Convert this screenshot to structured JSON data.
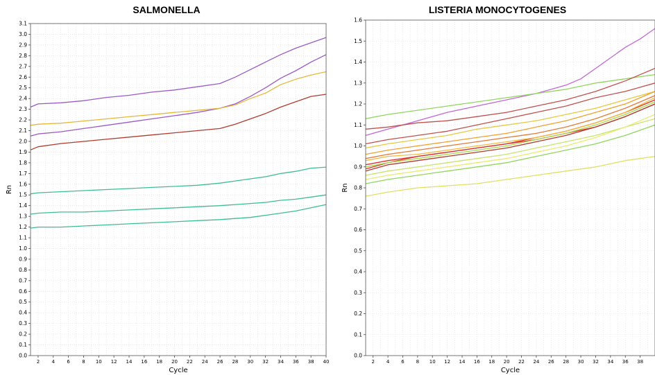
{
  "chart_data": [
    {
      "type": "line",
      "title": "SALMONELLA",
      "xlabel": "Cycle",
      "ylabel": "Rn",
      "xlim": [
        1,
        40
      ],
      "ylim": [
        0.0,
        3.1
      ],
      "grid": true,
      "yticks": [
        "0.0",
        "0.1",
        "0.2",
        "0.3",
        "0.4",
        "0.5",
        "0.6",
        "0.7",
        "0.8",
        "0.9",
        "1.0",
        "1.1",
        "1.2",
        "1.3",
        "1.4",
        "1.5",
        "1.6",
        "1.7",
        "1.8",
        "1.9",
        "2.0",
        "2.1",
        "2.2",
        "2.3",
        "2.4",
        "2.5",
        "2.6",
        "2.7",
        "2.8",
        "2.9",
        "3.0",
        "3.1"
      ],
      "xticks": [
        "2",
        "4",
        "6",
        "8",
        "10",
        "12",
        "14",
        "16",
        "18",
        "20",
        "22",
        "24",
        "26",
        "28",
        "30",
        "32",
        "34",
        "36",
        "38",
        "40"
      ],
      "series": [
        {
          "color": "#9b59c7",
          "x": [
            1,
            2,
            5,
            8,
            11,
            14,
            17,
            20,
            23,
            26,
            28,
            30,
            32,
            34,
            36,
            38,
            40
          ],
          "y": [
            2.32,
            2.35,
            2.36,
            2.38,
            2.41,
            2.43,
            2.46,
            2.48,
            2.51,
            2.54,
            2.6,
            2.67,
            2.74,
            2.81,
            2.87,
            2.92,
            2.97
          ]
        },
        {
          "color": "#9b59c7",
          "x": [
            1,
            2,
            5,
            8,
            11,
            14,
            17,
            20,
            23,
            26,
            28,
            30,
            32,
            34,
            36,
            38,
            40
          ],
          "y": [
            2.05,
            2.07,
            2.09,
            2.12,
            2.15,
            2.18,
            2.21,
            2.24,
            2.27,
            2.31,
            2.35,
            2.42,
            2.5,
            2.59,
            2.66,
            2.74,
            2.81
          ]
        },
        {
          "color": "#e4b93a",
          "x": [
            1,
            2,
            5,
            8,
            11,
            14,
            17,
            20,
            23,
            26,
            28,
            30,
            32,
            34,
            36,
            38,
            40
          ],
          "y": [
            2.15,
            2.16,
            2.17,
            2.19,
            2.21,
            2.23,
            2.25,
            2.27,
            2.29,
            2.31,
            2.34,
            2.4,
            2.45,
            2.53,
            2.58,
            2.62,
            2.65
          ]
        },
        {
          "color": "#b03a2e",
          "x": [
            1,
            2,
            5,
            8,
            11,
            14,
            17,
            20,
            23,
            26,
            28,
            30,
            32,
            34,
            36,
            38,
            40
          ],
          "y": [
            1.92,
            1.95,
            1.98,
            2.0,
            2.02,
            2.04,
            2.06,
            2.08,
            2.1,
            2.12,
            2.16,
            2.21,
            2.26,
            2.32,
            2.37,
            2.42,
            2.44
          ]
        },
        {
          "color": "#3cbf8f",
          "x": [
            1,
            2,
            5,
            8,
            11,
            14,
            17,
            20,
            23,
            26,
            28,
            30,
            32,
            34,
            36,
            38,
            40
          ],
          "y": [
            1.51,
            1.52,
            1.53,
            1.54,
            1.55,
            1.56,
            1.57,
            1.58,
            1.59,
            1.61,
            1.63,
            1.65,
            1.67,
            1.7,
            1.72,
            1.75,
            1.76
          ]
        },
        {
          "color": "#3cbf8f",
          "x": [
            1,
            2,
            5,
            8,
            11,
            14,
            17,
            20,
            23,
            26,
            28,
            30,
            32,
            34,
            36,
            38,
            40
          ],
          "y": [
            1.32,
            1.33,
            1.34,
            1.34,
            1.35,
            1.36,
            1.37,
            1.38,
            1.39,
            1.4,
            1.41,
            1.42,
            1.43,
            1.45,
            1.46,
            1.48,
            1.5
          ]
        },
        {
          "color": "#3cbf8f",
          "x": [
            1,
            2,
            5,
            8,
            11,
            14,
            17,
            20,
            23,
            26,
            28,
            30,
            32,
            34,
            36,
            38,
            40
          ],
          "y": [
            1.19,
            1.2,
            1.2,
            1.21,
            1.22,
            1.23,
            1.24,
            1.25,
            1.26,
            1.27,
            1.28,
            1.29,
            1.31,
            1.33,
            1.35,
            1.38,
            1.41
          ]
        }
      ]
    },
    {
      "type": "line",
      "title": "LISTERIA MONOCYTOGENES",
      "xlabel": "Cycle",
      "ylabel": "Rn",
      "xlim": [
        1,
        40
      ],
      "ylim": [
        0.0,
        1.6
      ],
      "grid": true,
      "yticks": [
        "0.0",
        "0.1",
        "0.2",
        "0.3",
        "0.4",
        "0.5",
        "0.6",
        "0.7",
        "0.8",
        "0.9",
        "1.0",
        "1.1",
        "1.2",
        "1.3",
        "1.4",
        "1.5",
        "1.6"
      ],
      "xticks": [
        "2",
        "4",
        "6",
        "8",
        "10",
        "12",
        "14",
        "16",
        "18",
        "20",
        "22",
        "24",
        "26",
        "28",
        "30",
        "32",
        "34",
        "36",
        "38"
      ],
      "series": [
        {
          "color": "#c266d6",
          "x": [
            1,
            4,
            8,
            12,
            16,
            20,
            24,
            28,
            30,
            32,
            34,
            36,
            38,
            40
          ],
          "y": [
            1.05,
            1.08,
            1.12,
            1.16,
            1.19,
            1.22,
            1.25,
            1.29,
            1.32,
            1.37,
            1.42,
            1.47,
            1.51,
            1.56
          ]
        },
        {
          "color": "#8fd65e",
          "x": [
            1,
            4,
            8,
            12,
            16,
            20,
            24,
            28,
            32,
            36,
            40
          ],
          "y": [
            1.13,
            1.15,
            1.17,
            1.19,
            1.21,
            1.23,
            1.25,
            1.27,
            1.3,
            1.32,
            1.34
          ]
        },
        {
          "color": "#c0504d",
          "x": [
            1,
            4,
            8,
            12,
            16,
            20,
            24,
            28,
            32,
            36,
            40
          ],
          "y": [
            1.08,
            1.09,
            1.11,
            1.12,
            1.14,
            1.16,
            1.19,
            1.22,
            1.26,
            1.31,
            1.37
          ]
        },
        {
          "color": "#c0504d",
          "x": [
            1,
            4,
            8,
            12,
            16,
            20,
            24,
            28,
            32,
            36,
            40
          ],
          "y": [
            1.01,
            1.03,
            1.05,
            1.07,
            1.1,
            1.13,
            1.16,
            1.19,
            1.23,
            1.26,
            1.3
          ]
        },
        {
          "color": "#e8c840",
          "x": [
            1,
            4,
            8,
            12,
            16,
            20,
            24,
            28,
            32,
            36,
            40
          ],
          "y": [
            0.99,
            1.01,
            1.03,
            1.05,
            1.08,
            1.1,
            1.12,
            1.15,
            1.18,
            1.22,
            1.26
          ]
        },
        {
          "color": "#f0a030",
          "x": [
            1,
            4,
            8,
            12,
            16,
            20,
            24,
            28,
            32,
            36,
            40
          ],
          "y": [
            0.96,
            0.98,
            1.0,
            1.02,
            1.04,
            1.06,
            1.09,
            1.12,
            1.16,
            1.2,
            1.26
          ]
        },
        {
          "color": "#e07b39",
          "x": [
            1,
            4,
            8,
            12,
            16,
            20,
            24,
            28,
            32,
            36,
            40
          ],
          "y": [
            0.94,
            0.96,
            0.98,
            1.0,
            1.02,
            1.04,
            1.06,
            1.09,
            1.13,
            1.18,
            1.24
          ]
        },
        {
          "color": "#d9342b",
          "x": [
            1,
            4,
            8,
            12,
            16,
            20,
            24,
            28,
            32,
            36,
            40
          ],
          "y": [
            0.89,
            0.92,
            0.95,
            0.97,
            0.99,
            1.01,
            1.04,
            1.07,
            1.11,
            1.16,
            1.22
          ]
        },
        {
          "color": "#d9342b",
          "x": [
            1,
            4,
            8,
            12,
            16,
            20,
            24,
            28,
            32,
            36,
            40
          ],
          "y": [
            0.91,
            0.93,
            0.95,
            0.97,
            0.99,
            1.01,
            1.03,
            1.06,
            1.09,
            1.14,
            1.2
          ]
        },
        {
          "color": "#f5b942",
          "x": [
            1,
            4,
            8,
            12,
            16,
            20,
            24,
            28,
            32,
            36,
            40
          ],
          "y": [
            0.93,
            0.95,
            0.96,
            0.98,
            1.0,
            1.02,
            1.04,
            1.07,
            1.11,
            1.16,
            1.23
          ]
        },
        {
          "color": "#b03a2e",
          "x": [
            1,
            4,
            8,
            12,
            16,
            20,
            24,
            28,
            32,
            36,
            40
          ],
          "y": [
            0.88,
            0.91,
            0.93,
            0.95,
            0.97,
            0.99,
            1.02,
            1.05,
            1.09,
            1.14,
            1.2
          ]
        },
        {
          "color": "#a8d84e",
          "x": [
            1,
            4,
            8,
            12,
            16,
            20,
            24,
            28,
            32,
            36,
            40
          ],
          "y": [
            0.9,
            0.92,
            0.94,
            0.96,
            0.98,
            1.0,
            1.03,
            1.06,
            1.1,
            1.15,
            1.21
          ]
        },
        {
          "color": "#c9e36a",
          "x": [
            1,
            4,
            8,
            12,
            16,
            20,
            24,
            28,
            32,
            36,
            40
          ],
          "y": [
            0.86,
            0.88,
            0.9,
            0.92,
            0.94,
            0.96,
            0.99,
            1.02,
            1.05,
            1.09,
            1.13
          ]
        },
        {
          "color": "#e8ec70",
          "x": [
            1,
            4,
            8,
            12,
            16,
            20,
            24,
            28,
            32,
            36,
            40
          ],
          "y": [
            0.84,
            0.86,
            0.88,
            0.9,
            0.92,
            0.94,
            0.97,
            1.0,
            1.04,
            1.09,
            1.15
          ]
        },
        {
          "color": "#8fd65e",
          "x": [
            1,
            4,
            8,
            12,
            16,
            20,
            24,
            28,
            32,
            36,
            40
          ],
          "y": [
            0.82,
            0.84,
            0.86,
            0.88,
            0.9,
            0.92,
            0.95,
            0.98,
            1.01,
            1.05,
            1.1
          ]
        },
        {
          "color": "#e0e060",
          "x": [
            1,
            4,
            8,
            12,
            16,
            20,
            24,
            28,
            32,
            36,
            40
          ],
          "y": [
            0.76,
            0.78,
            0.8,
            0.81,
            0.82,
            0.84,
            0.86,
            0.88,
            0.9,
            0.93,
            0.95
          ]
        }
      ]
    }
  ]
}
